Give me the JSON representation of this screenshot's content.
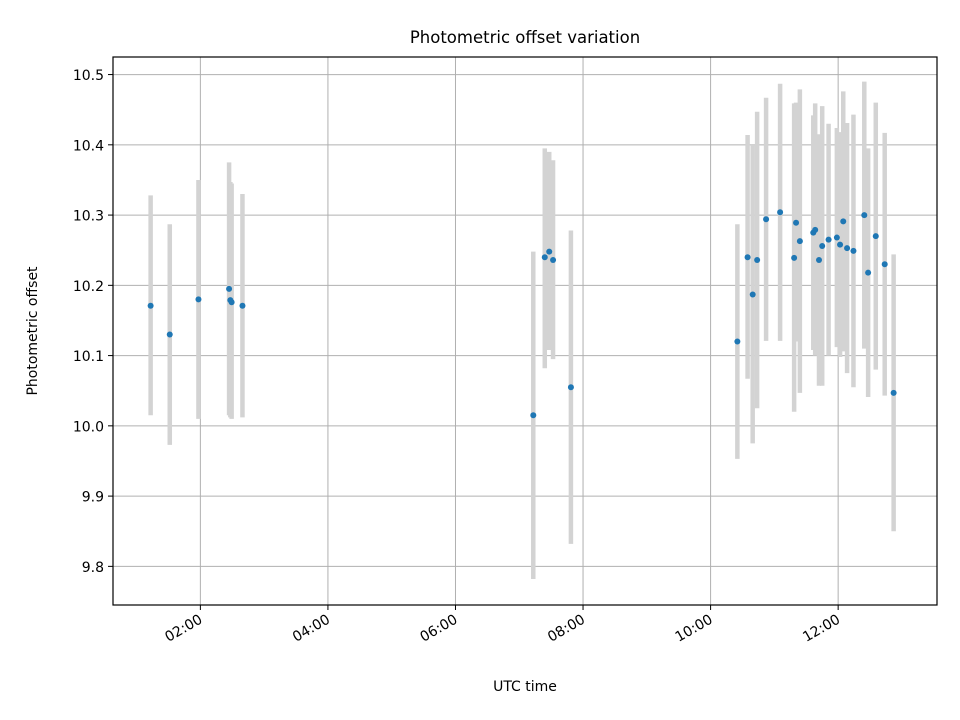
{
  "chart_data": {
    "type": "scatter",
    "title": "Photometric offset variation",
    "xlabel": "UTC time",
    "ylabel": "Photometric offset",
    "xlim_hours": [
      0.63,
      13.55
    ],
    "ylim": [
      9.745,
      10.525
    ],
    "grid": true,
    "xticks": [
      {
        "value": 2,
        "label": "02:00"
      },
      {
        "value": 4,
        "label": "04:00"
      },
      {
        "value": 6,
        "label": "06:00"
      },
      {
        "value": 8,
        "label": "08:00"
      },
      {
        "value": 10,
        "label": "10:00"
      },
      {
        "value": 12,
        "label": "12:00"
      }
    ],
    "yticks": [
      {
        "value": 9.8,
        "label": "9.8"
      },
      {
        "value": 9.9,
        "label": "9.9"
      },
      {
        "value": 10.0,
        "label": "10.0"
      },
      {
        "value": 10.1,
        "label": "10.1"
      },
      {
        "value": 10.2,
        "label": "10.2"
      },
      {
        "value": 10.3,
        "label": "10.3"
      },
      {
        "value": 10.4,
        "label": "10.4"
      },
      {
        "value": 10.5,
        "label": "10.5"
      }
    ],
    "marker_color": "#1f77b4",
    "errorbar_color": "#d3d3d3",
    "points": [
      {
        "t": 1.22,
        "y": 10.171,
        "lo": 10.015,
        "hi": 10.328
      },
      {
        "t": 1.52,
        "y": 10.13,
        "lo": 9.973,
        "hi": 10.287
      },
      {
        "t": 1.97,
        "y": 10.18,
        "lo": 10.01,
        "hi": 10.35
      },
      {
        "t": 2.45,
        "y": 10.195,
        "lo": 10.015,
        "hi": 10.375
      },
      {
        "t": 2.47,
        "y": 10.179,
        "lo": 10.012,
        "hi": 10.347
      },
      {
        "t": 2.49,
        "y": 10.176,
        "lo": 10.01,
        "hi": 10.345
      },
      {
        "t": 2.66,
        "y": 10.171,
        "lo": 10.012,
        "hi": 10.33
      },
      {
        "t": 7.22,
        "y": 10.015,
        "lo": 9.782,
        "hi": 10.248
      },
      {
        "t": 7.4,
        "y": 10.24,
        "lo": 10.082,
        "hi": 10.395
      },
      {
        "t": 7.47,
        "y": 10.248,
        "lo": 10.108,
        "hi": 10.39
      },
      {
        "t": 7.53,
        "y": 10.236,
        "lo": 10.095,
        "hi": 10.378
      },
      {
        "t": 7.81,
        "y": 10.055,
        "lo": 9.832,
        "hi": 10.278
      },
      {
        "t": 10.42,
        "y": 10.12,
        "lo": 9.953,
        "hi": 10.287
      },
      {
        "t": 10.58,
        "y": 10.24,
        "lo": 10.067,
        "hi": 10.414
      },
      {
        "t": 10.66,
        "y": 10.187,
        "lo": 9.975,
        "hi": 10.4
      },
      {
        "t": 10.73,
        "y": 10.236,
        "lo": 10.025,
        "hi": 10.447
      },
      {
        "t": 10.87,
        "y": 10.294,
        "lo": 10.121,
        "hi": 10.467
      },
      {
        "t": 11.09,
        "y": 10.304,
        "lo": 10.121,
        "hi": 10.487
      },
      {
        "t": 11.31,
        "y": 10.239,
        "lo": 10.02,
        "hi": 10.459
      },
      {
        "t": 11.34,
        "y": 10.289,
        "lo": 10.12,
        "hi": 10.46
      },
      {
        "t": 11.4,
        "y": 10.263,
        "lo": 10.047,
        "hi": 10.479
      },
      {
        "t": 11.61,
        "y": 10.275,
        "lo": 10.108,
        "hi": 10.442
      },
      {
        "t": 11.64,
        "y": 10.279,
        "lo": 10.1,
        "hi": 10.459
      },
      {
        "t": 11.7,
        "y": 10.236,
        "lo": 10.057,
        "hi": 10.415
      },
      {
        "t": 11.75,
        "y": 10.256,
        "lo": 10.057,
        "hi": 10.455
      },
      {
        "t": 11.85,
        "y": 10.265,
        "lo": 10.1,
        "hi": 10.43
      },
      {
        "t": 11.98,
        "y": 10.268,
        "lo": 10.112,
        "hi": 10.424
      },
      {
        "t": 12.03,
        "y": 10.258,
        "lo": 10.098,
        "hi": 10.418
      },
      {
        "t": 12.08,
        "y": 10.291,
        "lo": 10.106,
        "hi": 10.476
      },
      {
        "t": 12.14,
        "y": 10.253,
        "lo": 10.075,
        "hi": 10.431
      },
      {
        "t": 12.24,
        "y": 10.249,
        "lo": 10.055,
        "hi": 10.443
      },
      {
        "t": 12.41,
        "y": 10.3,
        "lo": 10.11,
        "hi": 10.49
      },
      {
        "t": 12.47,
        "y": 10.218,
        "lo": 10.041,
        "hi": 10.395
      },
      {
        "t": 12.59,
        "y": 10.27,
        "lo": 10.08,
        "hi": 10.46
      },
      {
        "t": 12.73,
        "y": 10.23,
        "lo": 10.043,
        "hi": 10.417
      },
      {
        "t": 12.87,
        "y": 10.047,
        "lo": 9.85,
        "hi": 10.244
      }
    ]
  }
}
